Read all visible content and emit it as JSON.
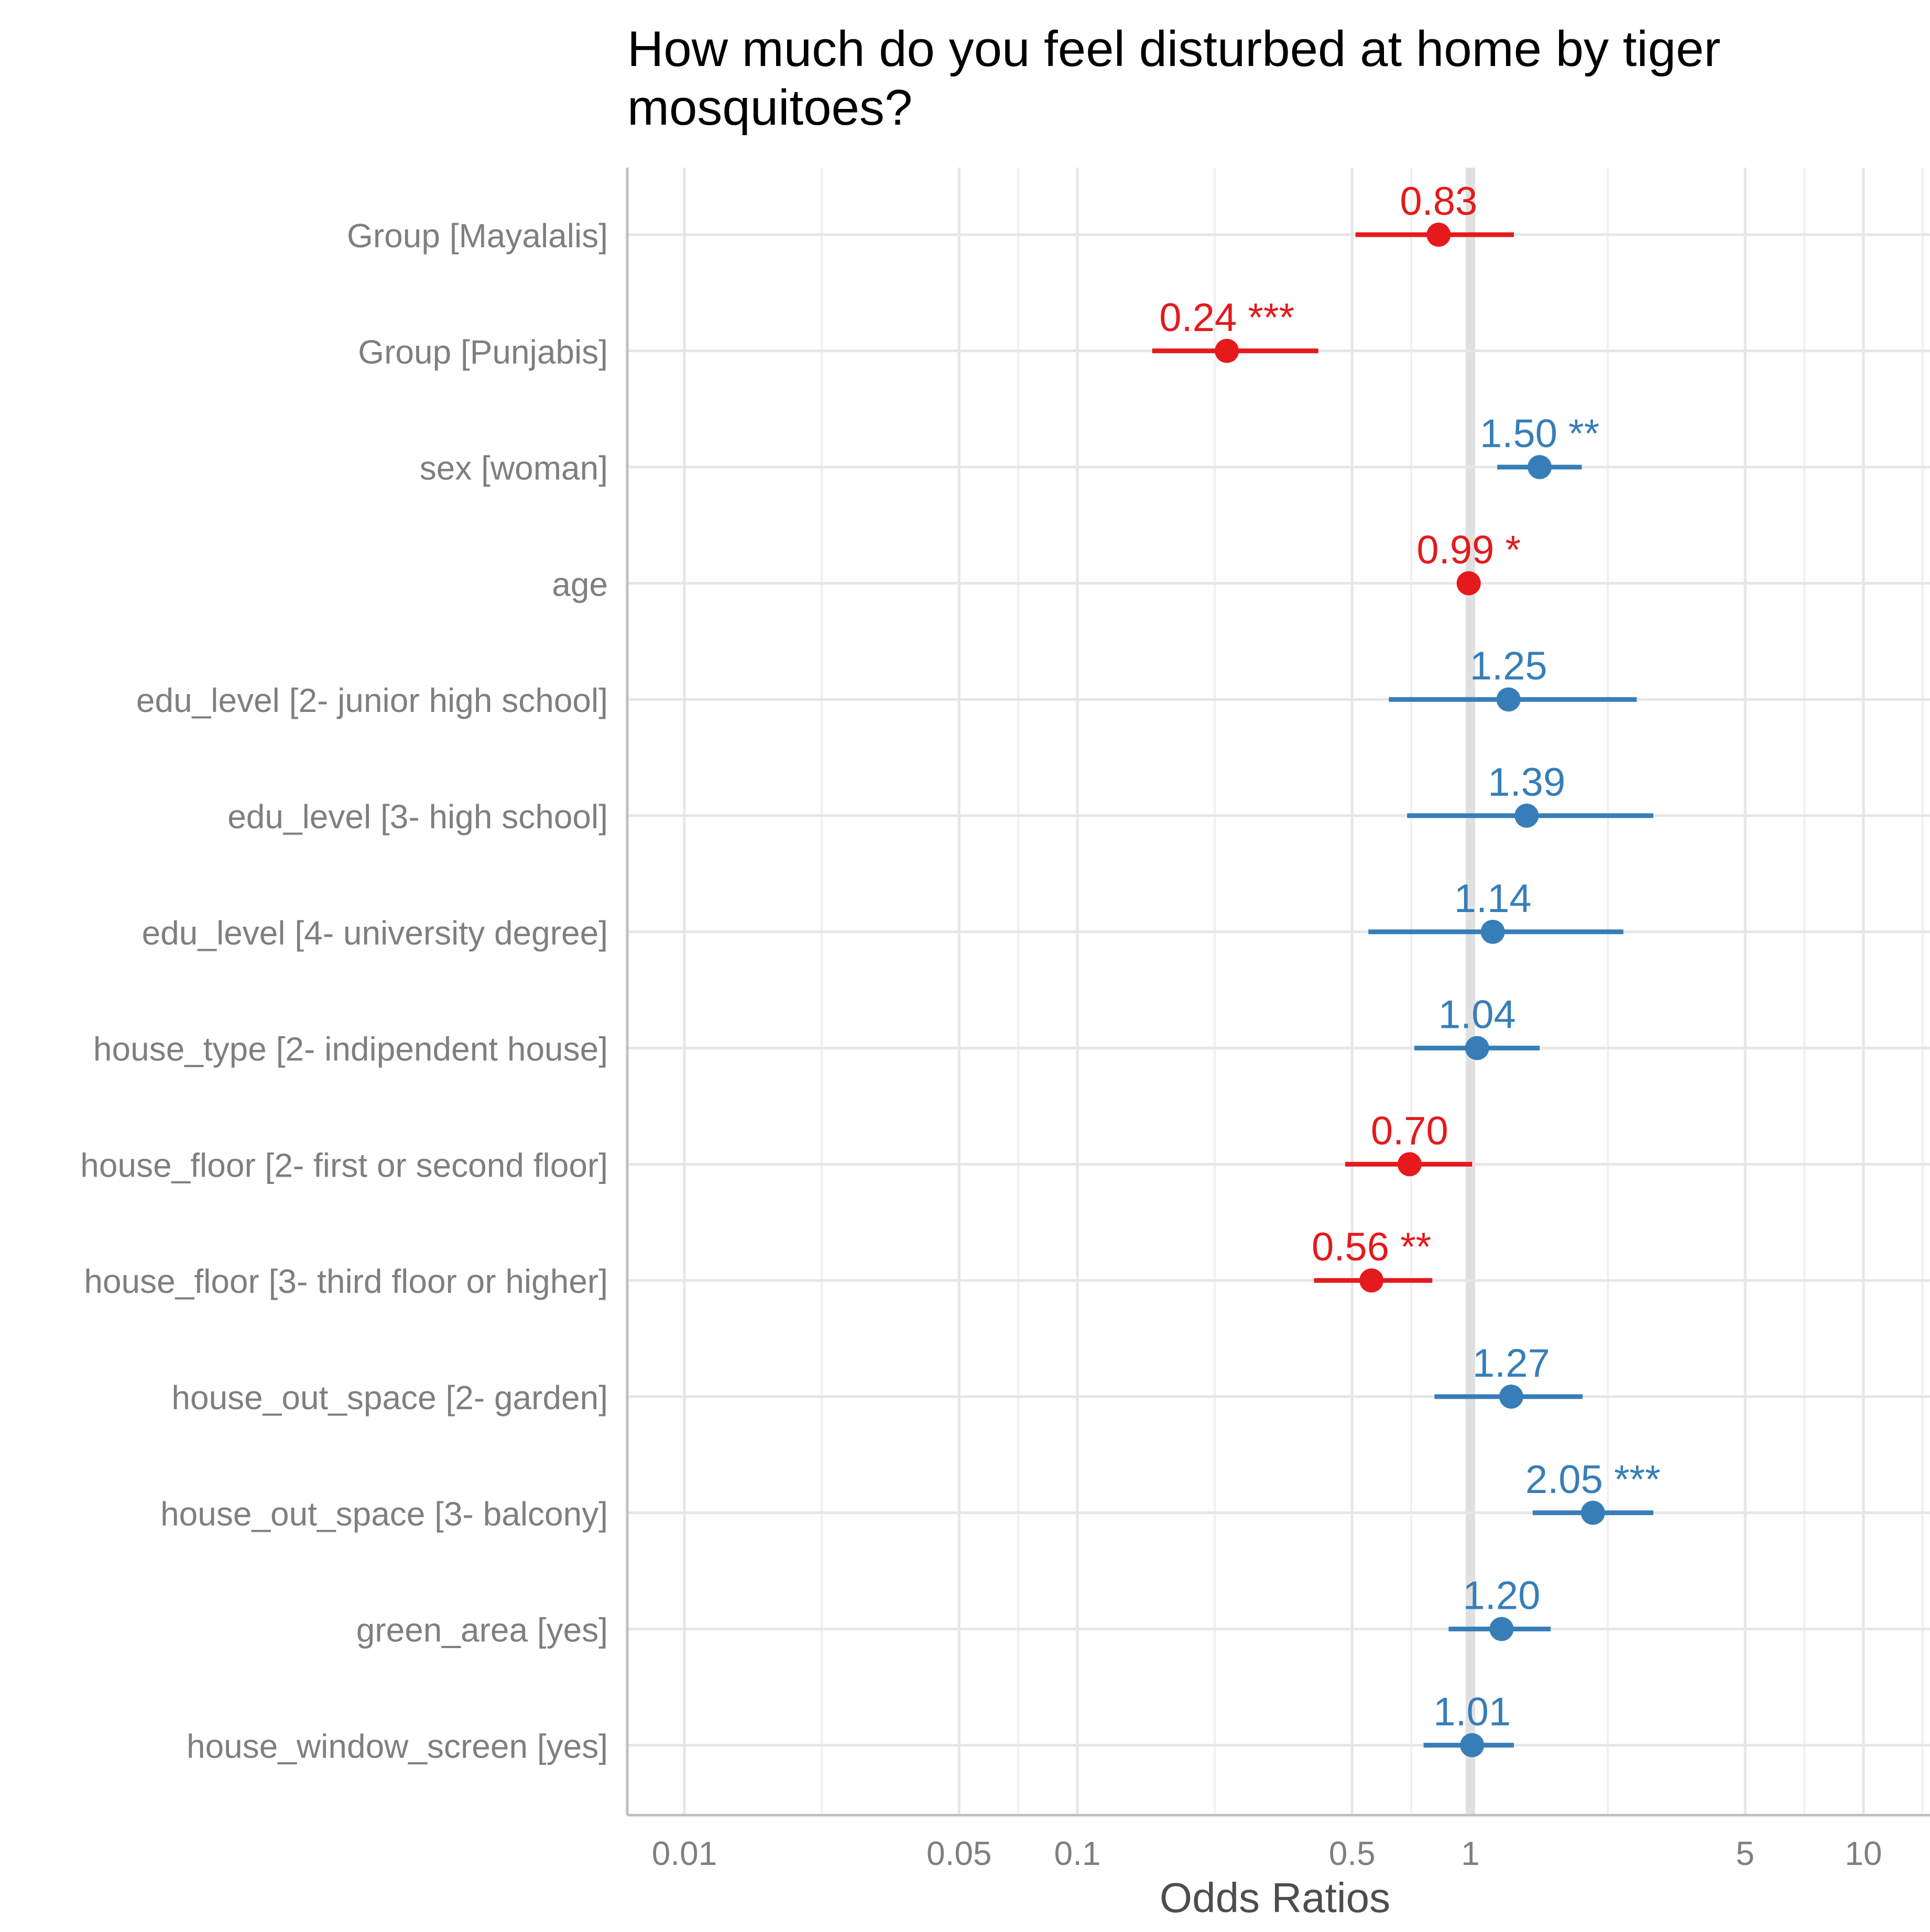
{
  "chart_data": {
    "type": "forest",
    "title": "How much do you feel disturbed at home by tiger mosquitoes?",
    "xlabel": "Odds Ratios",
    "ylabel": "",
    "x_scale": "log10",
    "xlim": [
      0.008,
      16
    ],
    "x_ticks": [
      0.01,
      0.05,
      0.1,
      0.5,
      1,
      5,
      10
    ],
    "x_tick_labels": [
      "0.01",
      "0.05",
      "0.1",
      "0.5",
      "1",
      "5",
      "10"
    ],
    "reference_line": 1,
    "colors": {
      "positive": "#377eb8",
      "negative": "#e41a1c",
      "axis_text": "#7f7f7f",
      "axis_title": "#4d4d4d",
      "grid_major": "#e6e6e6",
      "grid_minor": "#f0f0f0",
      "axis_line": "#bfbfbf"
    },
    "rows": [
      {
        "term": "Group [Mayalalis]",
        "estimate": 0.83,
        "ci_low": 0.51,
        "ci_high": 1.29,
        "label": "0.83",
        "stars": ""
      },
      {
        "term": "Group [Punjabis]",
        "estimate": 0.24,
        "ci_low": 0.155,
        "ci_high": 0.41,
        "label": "0.24",
        "stars": "***"
      },
      {
        "term": "sex [woman]",
        "estimate": 1.5,
        "ci_low": 1.17,
        "ci_high": 1.92,
        "label": "1.50",
        "stars": "**"
      },
      {
        "term": "age",
        "estimate": 0.99,
        "ci_low": 0.98,
        "ci_high": 1.0,
        "label": "0.99",
        "stars": "*"
      },
      {
        "term": "edu_level [2- junior high school]",
        "estimate": 1.25,
        "ci_low": 0.62,
        "ci_high": 2.65,
        "label": "1.25",
        "stars": ""
      },
      {
        "term": "edu_level [3- high school]",
        "estimate": 1.39,
        "ci_low": 0.69,
        "ci_high": 2.92,
        "label": "1.39",
        "stars": ""
      },
      {
        "term": "edu_level [4- university degree]",
        "estimate": 1.14,
        "ci_low": 0.55,
        "ci_high": 2.45,
        "label": "1.14",
        "stars": ""
      },
      {
        "term": "house_type [2- indipendent house]",
        "estimate": 1.04,
        "ci_low": 0.72,
        "ci_high": 1.5,
        "label": "1.04",
        "stars": ""
      },
      {
        "term": "house_floor [2- first or second floor]",
        "estimate": 0.7,
        "ci_low": 0.48,
        "ci_high": 1.01,
        "label": "0.70",
        "stars": ""
      },
      {
        "term": "house_floor [3- third floor or higher]",
        "estimate": 0.56,
        "ci_low": 0.4,
        "ci_high": 0.8,
        "label": "0.56",
        "stars": "**"
      },
      {
        "term": "house_out_space [2- garden]",
        "estimate": 1.27,
        "ci_low": 0.81,
        "ci_high": 1.93,
        "label": "1.27",
        "stars": ""
      },
      {
        "term": "house_out_space [3- balcony]",
        "estimate": 2.05,
        "ci_low": 1.44,
        "ci_high": 2.92,
        "label": "2.05",
        "stars": "***"
      },
      {
        "term": "green_area [yes]",
        "estimate": 1.2,
        "ci_low": 0.88,
        "ci_high": 1.6,
        "label": "1.20",
        "stars": ""
      },
      {
        "term": "house_window_screen [yes]",
        "estimate": 1.01,
        "ci_low": 0.76,
        "ci_high": 1.29,
        "label": "1.01",
        "stars": ""
      }
    ]
  }
}
